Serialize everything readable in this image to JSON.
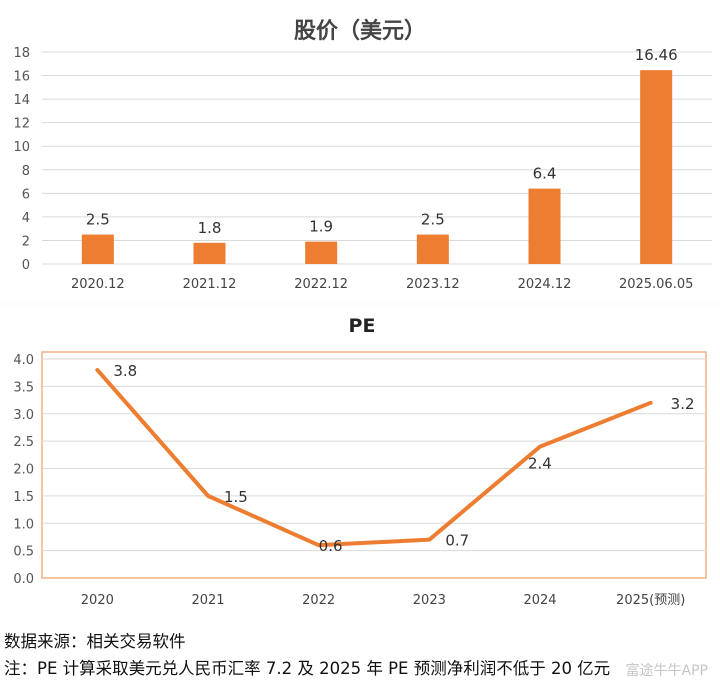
{
  "chart_data": [
    {
      "type": "bar",
      "title": "股价（美元）",
      "categories": [
        "2020.12",
        "2021.12",
        "2022.12",
        "2023.12",
        "2024.12",
        "2025.06.05"
      ],
      "values": [
        2.5,
        1.8,
        1.9,
        2.5,
        6.4,
        16.46
      ],
      "value_labels": [
        "2.5",
        "1.8",
        "1.9",
        "2.5",
        "6.4",
        "16.46"
      ],
      "yticks": [
        "0",
        "2",
        "4",
        "6",
        "8",
        "10",
        "12",
        "14",
        "16",
        "18"
      ],
      "ylim": [
        0,
        18
      ],
      "grid": true,
      "color": "#ED7D31"
    },
    {
      "type": "line",
      "title": "PE",
      "categories": [
        "2020",
        "2021",
        "2022",
        "2023",
        "2024",
        "2025(预测)"
      ],
      "values": [
        3.8,
        1.5,
        0.6,
        0.7,
        2.4,
        3.2
      ],
      "value_labels": [
        "3.8",
        "1.5",
        "0.6",
        "0.7",
        "2.4",
        "3.2"
      ],
      "yticks": [
        "0.0",
        "0.5",
        "1.0",
        "1.5",
        "2.0",
        "2.5",
        "3.0",
        "3.5",
        "4.0"
      ],
      "ylim": [
        0,
        4.0
      ],
      "grid": true,
      "color": "#ED7D31",
      "border_color": "#F4B183"
    }
  ],
  "notes": {
    "source": "数据来源：相关交易软件",
    "note": "注：PE 计算采取美元兑人民币汇率 7.2 及 2025 年 PE 预测净利润不低于 20 亿元"
  },
  "watermark": "富途牛牛APP"
}
